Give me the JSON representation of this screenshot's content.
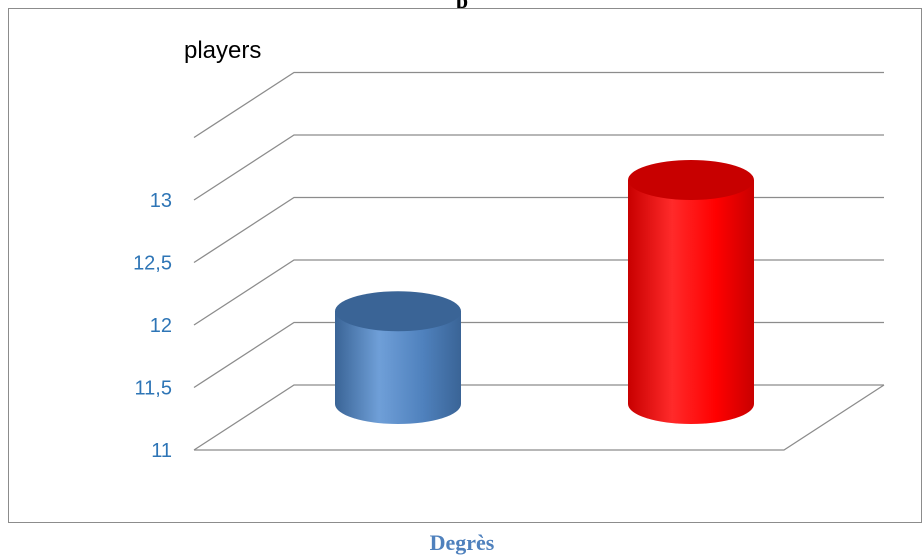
{
  "header": {
    "title": "p"
  },
  "chart_data": {
    "type": "bar",
    "title": "players",
    "categories": [
      "",
      ""
    ],
    "values": [
      11.85,
      12.9
    ],
    "ylim": [
      11,
      13
    ],
    "yticks": [
      "11",
      "11,5",
      "12",
      "12,5",
      "13"
    ],
    "colors": [
      "#4f81bd",
      "#ff0000"
    ],
    "tick_color": "#2e75b6",
    "grid": true,
    "legend": "none"
  },
  "caption": "Degrès"
}
